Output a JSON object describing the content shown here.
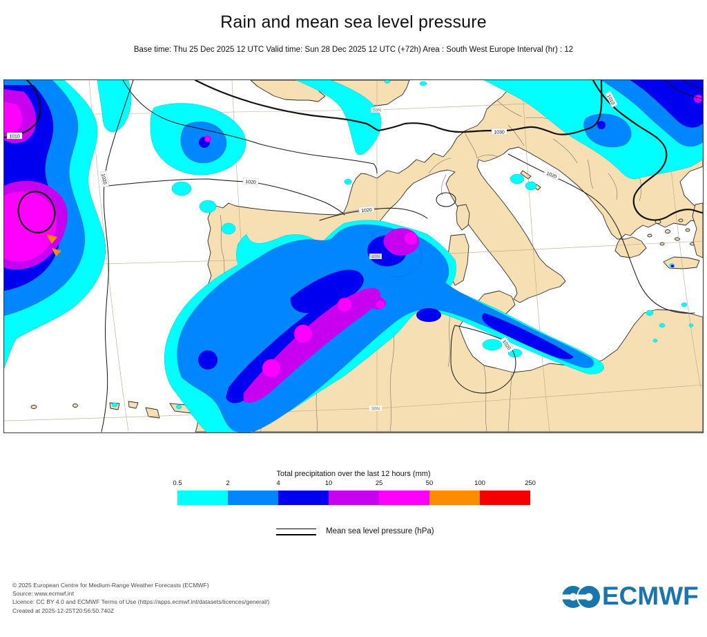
{
  "header": {
    "title": "Rain and mean sea level pressure",
    "subtitle": "Base time: Thu 25 Dec 2025 12 UTC Valid time: Sun 28 Dec 2025 12 UTC (+72h) Area : South West Europe Interval (hr) : 12"
  },
  "legend": {
    "title": "Total precipitation over the last 12 hours (mm)",
    "ticks": [
      "0.5",
      "2",
      "4",
      "10",
      "25",
      "50",
      "100",
      "250"
    ],
    "colors": [
      "#00FFFF",
      "#0087FF",
      "#0000F0",
      "#C800F0",
      "#FF00FF",
      "#FF8C00",
      "#F40000"
    ],
    "pressure_label": "Mean sea level pressure (hPa)"
  },
  "map": {
    "contour_labels": [
      {
        "text": "1010"
      },
      {
        "text": "1020"
      },
      {
        "text": "1020"
      },
      {
        "text": "1020"
      },
      {
        "text": "1030"
      },
      {
        "text": "1010"
      },
      {
        "text": "1020"
      },
      {
        "text": "1020"
      }
    ],
    "graticule_labels": [
      {
        "text": "50N"
      },
      {
        "text": "40N"
      },
      {
        "text": "30N"
      }
    ],
    "colors": {
      "sea": "#FFFFFF",
      "land": "#F6DFB2",
      "coast": "#2b2b2b",
      "graticule": "#b5a184",
      "isobar": "#111111"
    }
  },
  "footer": {
    "lines": [
      "© 2025 European Centre for Medium-Range Weather Forecasts (ECMWF)",
      "Source: www.ecmwf.int",
      "Licence: CC BY 4.0 and ECMWF Terms of Use (https://apps.ecmwf.int/datasets/licences/general/)",
      "Created at 2025-12-25T20:56:50.740Z"
    ],
    "logo_text": "ECMWF"
  }
}
